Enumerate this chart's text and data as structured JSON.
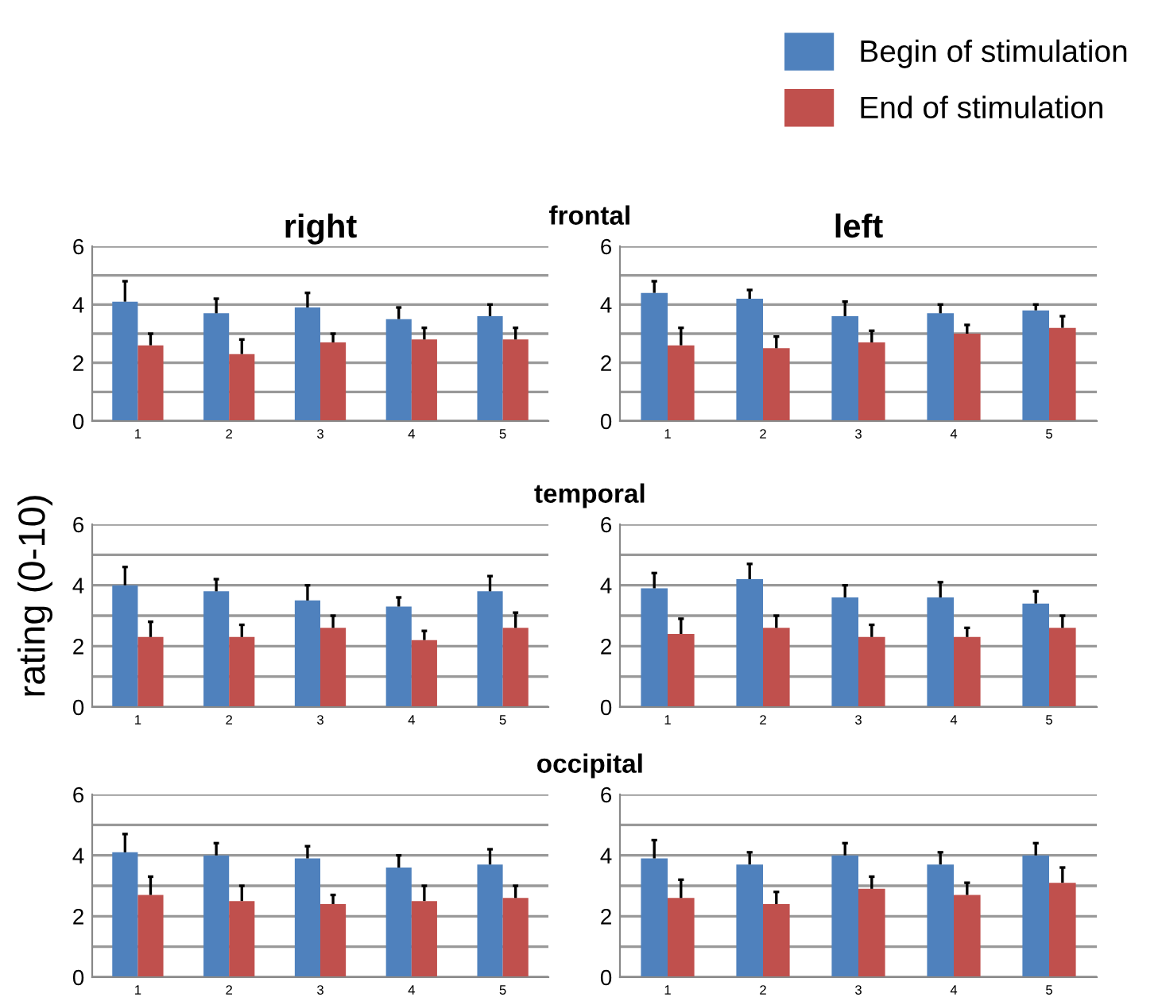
{
  "chart_data": [
    {
      "type": "bar",
      "title": "right",
      "subtitle": "frontal",
      "categories": [
        "1",
        "2",
        "3",
        "4",
        "5"
      ],
      "legend": "top right",
      "series": [
        {
          "name": "Begin of stimulation",
          "color": "#4f81bd",
          "values": [
            4.1,
            3.7,
            3.9,
            3.5,
            3.6
          ],
          "errors": [
            [
              4.1,
              4.8
            ],
            [
              3.7,
              4.2
            ],
            [
              3.9,
              4.4
            ],
            [
              3.5,
              3.9
            ],
            [
              3.6,
              4.0
            ]
          ]
        },
        {
          "name": "End of stimulation",
          "color": "#c0504d",
          "values": [
            2.6,
            2.3,
            2.7,
            2.8,
            2.8
          ],
          "errors": [
            [
              2.6,
              3.0
            ],
            [
              2.3,
              2.8
            ],
            [
              2.7,
              3.0
            ],
            [
              2.8,
              3.2
            ],
            [
              2.8,
              3.2
            ]
          ]
        }
      ],
      "ylim": [
        0,
        6
      ],
      "yticks": [
        0,
        {
          "value": 1,
          "label": null
        },
        2,
        {
          "value": 3,
          "label": null
        },
        4,
        {
          "value": 5,
          "label": null
        },
        6
      ],
      "grid": "y"
    },
    {
      "type": "bar",
      "title": "left",
      "categories": [
        "1",
        "2",
        "3",
        "4",
        "5"
      ],
      "series": [
        {
          "color": "#4f81bd",
          "values": [
            4.4,
            4.2,
            3.6,
            3.7,
            3.8
          ],
          "errors": [
            [
              4.4,
              4.8
            ],
            [
              4.2,
              4.5
            ],
            [
              3.6,
              4.1
            ],
            [
              3.7,
              4.0
            ],
            [
              3.8,
              4.0
            ]
          ]
        },
        {
          "color": "#c0504d",
          "values": [
            2.6,
            2.5,
            2.7,
            3.0,
            3.2
          ],
          "errors": [
            [
              2.6,
              3.2
            ],
            [
              2.5,
              2.9
            ],
            [
              2.7,
              3.1
            ],
            [
              3.0,
              3.3
            ],
            [
              3.2,
              3.6
            ]
          ]
        }
      ],
      "ylim": [
        0,
        6
      ],
      "yticks": [
        0,
        {
          "value": 1,
          "label": null
        },
        2,
        {
          "value": 3,
          "label": null
        },
        4,
        {
          "value": 5,
          "label": null
        },
        6
      ],
      "grid": "y"
    },
    {
      "type": "bar",
      "subtitle": "temporal",
      "ylabel": "rating (0-10)",
      "categories": [
        "1",
        "2",
        "3",
        "4",
        "5"
      ],
      "series": [
        {
          "color": "#4f81bd",
          "values": [
            4.0,
            3.8,
            3.5,
            3.3,
            3.8
          ],
          "errors": [
            [
              4.0,
              4.6
            ],
            [
              3.8,
              4.2
            ],
            [
              3.5,
              4.0
            ],
            [
              3.3,
              3.6
            ],
            [
              3.8,
              4.3
            ]
          ]
        },
        {
          "color": "#c0504d",
          "values": [
            2.3,
            2.3,
            2.6,
            2.2,
            2.6
          ],
          "errors": [
            [
              2.3,
              2.8
            ],
            [
              2.3,
              2.7
            ],
            [
              2.6,
              3.0
            ],
            [
              2.2,
              2.5
            ],
            [
              2.6,
              3.1
            ]
          ]
        }
      ],
      "ylim": [
        0,
        6
      ],
      "yticks": [
        0,
        {
          "value": 1,
          "label": null
        },
        2,
        {
          "value": 3,
          "label": null
        },
        4,
        {
          "value": 5,
          "label": null
        },
        6
      ],
      "grid": "y"
    },
    {
      "type": "bar",
      "categories": [
        "1",
        "2",
        "3",
        "4",
        "5"
      ],
      "series": [
        {
          "color": "#4f81bd",
          "values": [
            3.9,
            4.2,
            3.6,
            3.6,
            3.4
          ],
          "errors": [
            [
              3.9,
              4.4
            ],
            [
              4.2,
              4.7
            ],
            [
              3.6,
              4.0
            ],
            [
              3.6,
              4.1
            ],
            [
              3.4,
              3.8
            ]
          ]
        },
        {
          "color": "#c0504d",
          "values": [
            2.4,
            2.6,
            2.3,
            2.3,
            2.6
          ],
          "errors": [
            [
              2.4,
              2.9
            ],
            [
              2.6,
              3.0
            ],
            [
              2.3,
              2.7
            ],
            [
              2.3,
              2.6
            ],
            [
              2.6,
              3.0
            ]
          ]
        }
      ],
      "ylim": [
        0,
        6
      ],
      "yticks": [
        0,
        {
          "value": 1,
          "label": null
        },
        2,
        {
          "value": 3,
          "label": null
        },
        4,
        {
          "value": 5,
          "label": null
        },
        6
      ],
      "grid": "y"
    },
    {
      "type": "bar",
      "subtitle": "occipital",
      "categories": [
        "1",
        "2",
        "3",
        "4",
        "5"
      ],
      "series": [
        {
          "color": "#4f81bd",
          "values": [
            4.1,
            4.0,
            3.9,
            3.6,
            3.7
          ],
          "errors": [
            [
              4.1,
              4.7
            ],
            [
              4.0,
              4.4
            ],
            [
              3.9,
              4.3
            ],
            [
              3.6,
              4.0
            ],
            [
              3.7,
              4.2
            ]
          ]
        },
        {
          "color": "#c0504d",
          "values": [
            2.7,
            2.5,
            2.4,
            2.5,
            2.6
          ],
          "errors": [
            [
              2.7,
              3.3
            ],
            [
              2.5,
              3.0
            ],
            [
              2.4,
              2.7
            ],
            [
              2.5,
              3.0
            ],
            [
              2.6,
              3.0
            ]
          ]
        }
      ],
      "ylim": [
        0,
        6
      ],
      "yticks": [
        0,
        {
          "value": 1,
          "label": null
        },
        2,
        {
          "value": 3,
          "label": null
        },
        4,
        {
          "value": 5,
          "label": null
        },
        6
      ],
      "grid": "y"
    },
    {
      "type": "bar",
      "categories": [
        "1",
        "2",
        "3",
        "4",
        "5"
      ],
      "series": [
        {
          "color": "#4f81bd",
          "values": [
            3.9,
            3.7,
            4.0,
            3.7,
            4.0
          ],
          "errors": [
            [
              3.9,
              4.5
            ],
            [
              3.7,
              4.1
            ],
            [
              4.0,
              4.4
            ],
            [
              3.7,
              4.1
            ],
            [
              4.0,
              4.4
            ]
          ]
        },
        {
          "color": "#c0504d",
          "values": [
            2.6,
            2.4,
            2.9,
            2.7,
            3.1
          ],
          "errors": [
            [
              2.6,
              3.2
            ],
            [
              2.4,
              2.8
            ],
            [
              2.9,
              3.3
            ],
            [
              2.7,
              3.1
            ],
            [
              3.1,
              3.6
            ]
          ]
        }
      ],
      "ylim": [
        0,
        6
      ],
      "yticks": [
        0,
        {
          "value": 1,
          "label": null
        },
        2,
        {
          "value": 3,
          "label": null
        },
        4,
        {
          "value": 5,
          "label": null
        },
        6
      ],
      "grid": "y"
    }
  ]
}
